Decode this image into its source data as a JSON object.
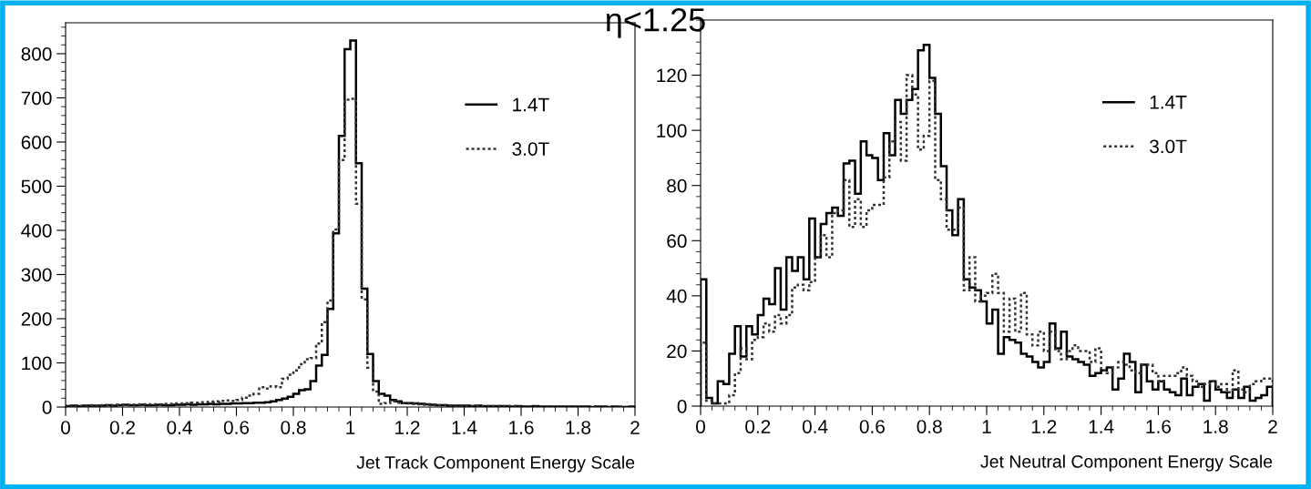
{
  "chart_data": [
    {
      "type": "histogram",
      "xlabel": "Jet Track Component Energy Scale",
      "annotations": [
        "η<1.25"
      ],
      "bins": [
        0,
        0.02,
        0.04,
        0.06,
        0.08,
        0.1,
        0.12,
        0.14,
        0.16,
        0.18,
        0.2,
        0.22,
        0.24,
        0.26,
        0.28,
        0.3,
        0.32,
        0.34,
        0.36,
        0.38,
        0.4,
        0.42,
        0.44,
        0.46,
        0.48,
        0.5,
        0.52,
        0.54,
        0.56,
        0.58,
        0.6,
        0.62,
        0.64,
        0.66,
        0.68,
        0.7,
        0.72,
        0.74,
        0.76,
        0.78,
        0.8,
        0.82,
        0.84,
        0.86,
        0.88,
        0.9,
        0.92,
        0.94,
        0.96,
        0.98,
        1,
        1.02,
        1.04,
        1.06,
        1.08,
        1.1,
        1.12,
        1.14,
        1.16,
        1.18,
        1.2,
        1.22,
        1.24,
        1.26,
        1.28,
        1.3,
        1.32,
        1.34,
        1.36,
        1.38,
        1.4,
        1.42,
        1.44,
        1.46,
        1.48,
        1.5,
        1.52,
        1.54,
        1.56,
        1.58,
        1.6,
        1.62,
        1.64,
        1.66,
        1.68,
        1.7,
        1.72,
        1.74,
        1.76,
        1.78,
        1.8,
        1.82,
        1.84,
        1.86,
        1.88,
        1.9,
        1.92,
        1.94,
        1.96,
        1.98,
        2
      ],
      "series": [
        {
          "name": "1.4T",
          "color": "#000000",
          "line_style": "solid",
          "values": [
            2,
            3,
            2,
            3,
            3,
            3,
            3,
            4,
            3,
            4,
            5,
            4,
            4,
            5,
            4,
            4,
            5,
            4,
            4,
            5,
            5,
            6,
            5,
            6,
            6,
            7,
            6,
            7,
            7,
            8,
            8,
            9,
            9,
            10,
            10,
            11,
            13,
            16,
            19,
            23,
            30,
            38,
            40,
            59,
            94,
            118,
            222,
            393,
            614,
            810,
            830,
            552,
            268,
            120,
            59,
            30,
            26,
            16,
            13,
            9,
            9,
            8,
            7,
            6,
            5,
            4,
            4,
            3,
            3,
            3,
            3,
            2,
            3,
            2,
            2,
            2,
            2,
            2,
            1,
            2,
            1,
            1,
            2,
            1,
            1,
            1,
            1,
            1,
            1,
            1,
            1,
            1,
            0,
            1,
            1,
            0,
            1,
            0,
            0,
            1
          ]
        },
        {
          "name": "3.0T",
          "color": "#333333",
          "line_style": "dotted",
          "values": [
            3,
            3,
            2,
            3,
            4,
            3,
            4,
            4,
            4,
            5,
            5,
            5,
            5,
            6,
            6,
            6,
            6,
            7,
            7,
            8,
            8,
            9,
            10,
            10,
            11,
            12,
            13,
            14,
            15,
            14,
            16,
            21,
            26,
            30,
            45,
            42,
            47,
            45,
            64,
            73,
            83,
            97,
            108,
            111,
            144,
            192,
            241,
            402,
            559,
            696,
            698,
            460,
            244,
            89,
            35,
            7,
            9,
            13,
            10,
            9,
            8,
            7,
            6,
            5,
            5,
            4,
            4,
            3,
            3,
            3,
            3,
            2,
            2,
            2,
            2,
            2,
            2,
            1,
            2,
            1,
            1,
            1,
            1,
            1,
            1,
            1,
            1,
            1,
            1,
            1,
            0,
            1,
            1,
            0,
            1,
            0,
            0,
            1,
            0,
            0
          ]
        }
      ],
      "xlim": [
        0,
        2
      ],
      "xticks": [
        0,
        0.2,
        0.4,
        0.6,
        0.8,
        1,
        1.2,
        1.4,
        1.6,
        1.8,
        2
      ],
      "ylim": [
        0,
        870
      ],
      "yticks": [
        0,
        100,
        200,
        300,
        400,
        500,
        600,
        700,
        800
      ],
      "legend": "top right",
      "grid": false
    },
    {
      "type": "histogram",
      "xlabel": "Jet Neutral Component Energy Scale",
      "bins": [
        0,
        0.02,
        0.04,
        0.06,
        0.08,
        0.1,
        0.12,
        0.14,
        0.16,
        0.18,
        0.2,
        0.22,
        0.24,
        0.26,
        0.28,
        0.3,
        0.32,
        0.34,
        0.36,
        0.38,
        0.4,
        0.42,
        0.44,
        0.46,
        0.48,
        0.5,
        0.52,
        0.54,
        0.56,
        0.58,
        0.6,
        0.62,
        0.64,
        0.66,
        0.68,
        0.7,
        0.72,
        0.74,
        0.76,
        0.78,
        0.8,
        0.82,
        0.84,
        0.86,
        0.88,
        0.9,
        0.92,
        0.94,
        0.96,
        0.98,
        1,
        1.02,
        1.04,
        1.06,
        1.08,
        1.1,
        1.12,
        1.14,
        1.16,
        1.18,
        1.2,
        1.22,
        1.24,
        1.26,
        1.28,
        1.3,
        1.32,
        1.34,
        1.36,
        1.38,
        1.4,
        1.42,
        1.44,
        1.46,
        1.48,
        1.5,
        1.52,
        1.54,
        1.56,
        1.58,
        1.6,
        1.62,
        1.64,
        1.66,
        1.68,
        1.7,
        1.72,
        1.74,
        1.76,
        1.78,
        1.8,
        1.82,
        1.84,
        1.86,
        1.88,
        1.9,
        1.92,
        1.94,
        1.96,
        1.98,
        2
      ],
      "series": [
        {
          "name": "1.4T",
          "color": "#000000",
          "line_style": "solid",
          "values": [
            46,
            3,
            1,
            9,
            8,
            19,
            29,
            18,
            29,
            26,
            33,
            39,
            37,
            50,
            35,
            54,
            49,
            54,
            46,
            68,
            54,
            66,
            70,
            72,
            69,
            88,
            89,
            77,
            96,
            91,
            90,
            82,
            99,
            91,
            111,
            106,
            111,
            115,
            129,
            131,
            119,
            106,
            87,
            71,
            62,
            75,
            46,
            43,
            42,
            38,
            30,
            35,
            19,
            25,
            24,
            23,
            19,
            18,
            16,
            14,
            16,
            30,
            21,
            27,
            18,
            17,
            16,
            15,
            11,
            12,
            13,
            14,
            6,
            10,
            19,
            16,
            5,
            15,
            9,
            6,
            9,
            6,
            5,
            4,
            10,
            4,
            7,
            8,
            2,
            9,
            6,
            5,
            3,
            6,
            3,
            7,
            2,
            3,
            4,
            7
          ]
        },
        {
          "name": "3.0T",
          "color": "#333333",
          "line_style": "dotted",
          "values": [
            23,
            2,
            1,
            1,
            1,
            4,
            12,
            21,
            17,
            24,
            25,
            30,
            27,
            33,
            30,
            33,
            43,
            44,
            42,
            45,
            54,
            62,
            54,
            70,
            71,
            82,
            65,
            75,
            65,
            71,
            73,
            73,
            83,
            96,
            103,
            89,
            120,
            113,
            93,
            98,
            118,
            82,
            75,
            64,
            64,
            72,
            42,
            54,
            38,
            40,
            41,
            48,
            41,
            27,
            39,
            27,
            41,
            26,
            22,
            27,
            20,
            27,
            20,
            17,
            20,
            22,
            20,
            20,
            16,
            21,
            13,
            12,
            14,
            16,
            15,
            13,
            12,
            15,
            15,
            12,
            9,
            11,
            11,
            12,
            14,
            11,
            9,
            7,
            8,
            9,
            7,
            8,
            5,
            13,
            6,
            5,
            8,
            9,
            10,
            10
          ]
        }
      ],
      "xlim": [
        0,
        2
      ],
      "xticks": [
        0,
        0.2,
        0.4,
        0.6,
        0.8,
        1,
        1.2,
        1.4,
        1.6,
        1.8,
        2
      ],
      "ylim": [
        0,
        140
      ],
      "yticks": [
        0,
        20,
        40,
        60,
        80,
        100,
        120
      ],
      "legend": "top right",
      "grid": false
    }
  ]
}
